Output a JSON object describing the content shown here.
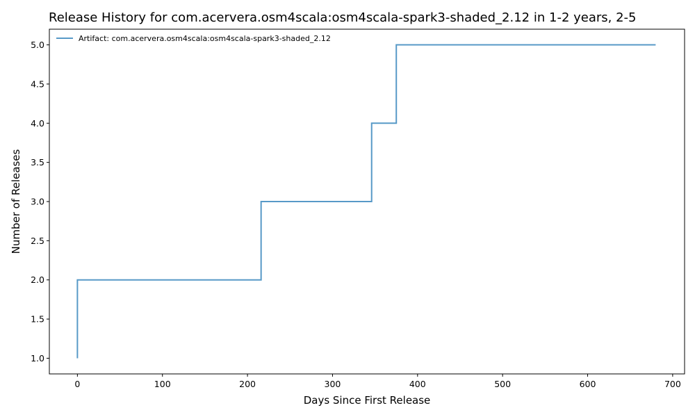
{
  "chart_data": {
    "type": "line",
    "drawstyle": "steps-post",
    "title": "Release History for com.acervera.osm4scala:osm4scala-spark3-shaded_2.12 in 1-2 years, 2-5",
    "xlabel": "Days Since First Release",
    "ylabel": "Number of Releases",
    "xlim": [
      -33,
      714
    ],
    "ylim": [
      0.8,
      5.2
    ],
    "xticks": [
      0,
      100,
      200,
      300,
      400,
      500,
      600,
      700
    ],
    "xtick_labels": [
      "0",
      "100",
      "200",
      "300",
      "400",
      "500",
      "600",
      "700"
    ],
    "yticks": [
      1.0,
      1.5,
      2.0,
      2.5,
      3.0,
      3.5,
      4.0,
      4.5,
      5.0
    ],
    "ytick_labels": [
      "1.0",
      "1.5",
      "2.0",
      "2.5",
      "3.0",
      "3.5",
      "4.0",
      "4.5",
      "5.0"
    ],
    "grid": false,
    "legend_position": "top-left",
    "series": [
      {
        "name": "Artifact: com.acervera.osm4scala:osm4scala-spark3-shaded_2.12",
        "color": "#1f77b4",
        "x": [
          0,
          0,
          216,
          346,
          375,
          680
        ],
        "y": [
          1,
          2,
          3,
          4,
          5,
          5
        ]
      }
    ]
  }
}
